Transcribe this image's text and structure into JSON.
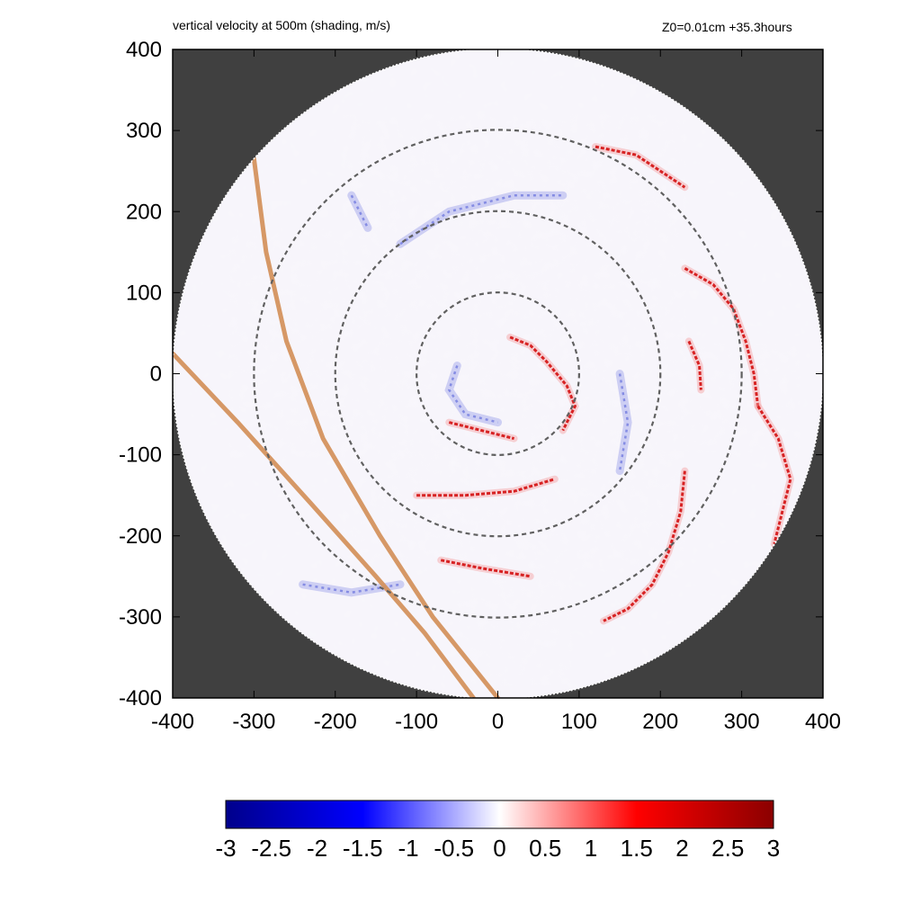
{
  "chart_data": {
    "type": "heatmap",
    "title": "vertical velocity at 500m (shading, m/s)",
    "subtitle": "Z0=0.01cm  +35.3hours",
    "xlim": [
      -400,
      400
    ],
    "ylim": [
      -400,
      400
    ],
    "x_ticks": [
      -400,
      -300,
      -200,
      -100,
      0,
      100,
      200,
      300,
      400
    ],
    "y_ticks": [
      -400,
      -300,
      -200,
      -100,
      0,
      100,
      200,
      300,
      400
    ],
    "domain_radius": 400,
    "outside_domain_color": "#404040",
    "reference_circles": {
      "radii": [
        100,
        200,
        300
      ],
      "style": "dashed",
      "color": "#606060"
    },
    "track_lines": {
      "color": "#d4925e",
      "lines": [
        [
          [
            -300,
            265
          ],
          [
            -285,
            150
          ],
          [
            -260,
            40
          ],
          [
            -215,
            -80
          ],
          [
            -145,
            -200
          ],
          [
            -80,
            -300
          ],
          [
            0,
            -400
          ]
        ],
        [
          [
            -400,
            25
          ],
          [
            -320,
            -60
          ],
          [
            -230,
            -160
          ],
          [
            -150,
            -250
          ],
          [
            -90,
            -320
          ],
          [
            -30,
            -400
          ]
        ]
      ]
    },
    "colorbar": {
      "ticks": [
        -3,
        -2.5,
        -2,
        -1.5,
        -1,
        -0.5,
        0,
        0.5,
        1,
        1.5,
        2,
        2.5,
        3
      ],
      "tick_labels": [
        "-3",
        "-2.5",
        "-2",
        "-1.5",
        "-1",
        "-0.5",
        "0",
        "0.5",
        "1",
        "1.5",
        "2",
        "2.5",
        "3"
      ],
      "range": [
        -3,
        3
      ],
      "colors": [
        "#00008b",
        "#0000ff",
        "#ffffff",
        "#ff0000",
        "#8b0000"
      ]
    },
    "features": {
      "updraft_bands": [
        [
          [
            15,
            45
          ],
          [
            40,
            35
          ],
          [
            60,
            15
          ],
          [
            85,
            -15
          ],
          [
            95,
            -40
          ],
          [
            80,
            -70
          ]
        ],
        [
          [
            -60,
            -60
          ],
          [
            -20,
            -70
          ],
          [
            20,
            -80
          ]
        ],
        [
          [
            120,
            280
          ],
          [
            170,
            270
          ],
          [
            200,
            250
          ],
          [
            230,
            230
          ]
        ],
        [
          [
            230,
            130
          ],
          [
            265,
            110
          ],
          [
            290,
            80
          ],
          [
            305,
            40
          ],
          [
            315,
            0
          ],
          [
            320,
            -40
          ]
        ],
        [
          [
            235,
            40
          ],
          [
            248,
            10
          ],
          [
            250,
            -20
          ]
        ],
        [
          [
            230,
            -120
          ],
          [
            225,
            -170
          ],
          [
            210,
            -220
          ],
          [
            190,
            -260
          ],
          [
            160,
            -290
          ],
          [
            130,
            -305
          ]
        ],
        [
          [
            320,
            -40
          ],
          [
            345,
            -80
          ],
          [
            360,
            -130
          ],
          [
            340,
            -210
          ]
        ],
        [
          [
            -70,
            -230
          ],
          [
            -20,
            -240
          ],
          [
            40,
            -250
          ]
        ],
        [
          [
            -100,
            -150
          ],
          [
            -40,
            -150
          ],
          [
            20,
            -145
          ],
          [
            70,
            -130
          ]
        ]
      ],
      "downdraft_bands": [
        [
          [
            -50,
            10
          ],
          [
            -60,
            -20
          ],
          [
            -40,
            -50
          ],
          [
            0,
            -60
          ]
        ],
        [
          [
            -120,
            160
          ],
          [
            -60,
            200
          ],
          [
            20,
            220
          ],
          [
            80,
            220
          ]
        ],
        [
          [
            150,
            0
          ],
          [
            160,
            -60
          ],
          [
            150,
            -120
          ]
        ],
        [
          [
            -240,
            -260
          ],
          [
            -180,
            -270
          ],
          [
            -120,
            -260
          ]
        ],
        [
          [
            -180,
            220
          ],
          [
            -160,
            180
          ]
        ]
      ]
    }
  }
}
